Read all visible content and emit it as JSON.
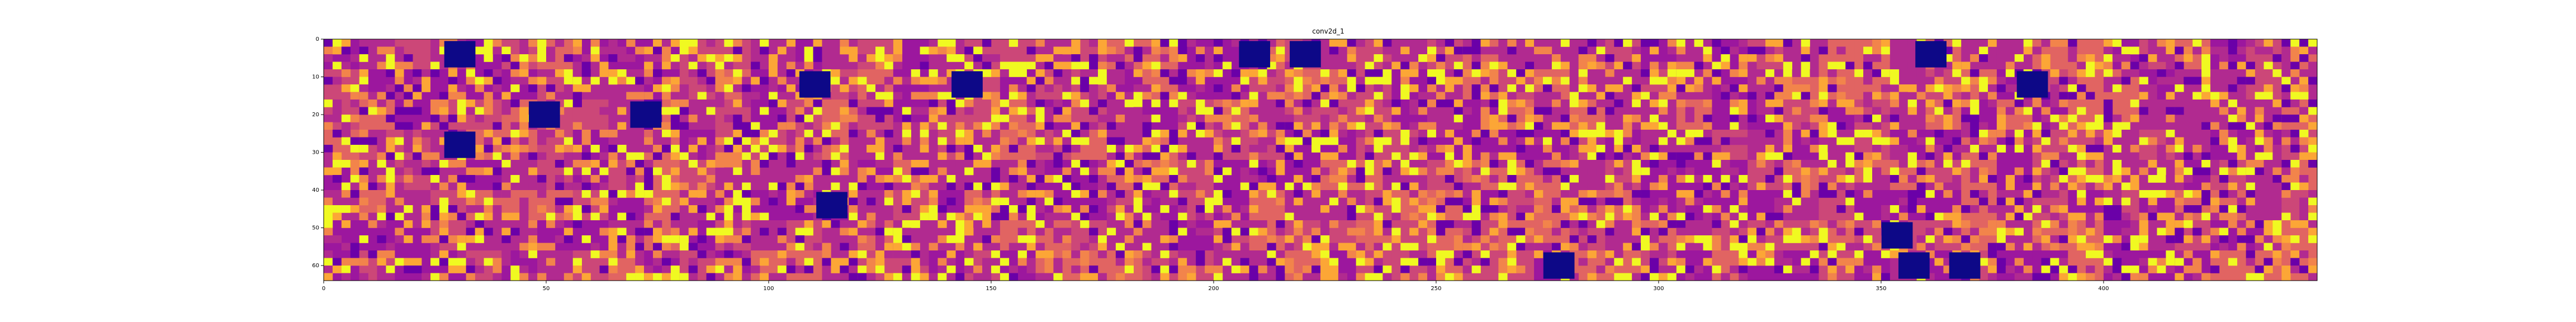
{
  "chart_data": {
    "type": "heatmap",
    "title": "conv2d_1",
    "xlabel": "",
    "ylabel": "",
    "xlim": [
      0,
      448
    ],
    "ylim": [
      64,
      0
    ],
    "x_ticks": [
      0,
      50,
      100,
      150,
      200,
      250,
      300,
      350,
      400
    ],
    "y_ticks": [
      0,
      10,
      20,
      30,
      40,
      50,
      60
    ],
    "colormap": "plasma",
    "grid": false,
    "mosaic": {
      "tile_size": 8,
      "tiles_across": 56,
      "tiles_down": 8,
      "dead_filter_tiles": [
        {
          "col": 7,
          "row": 0
        },
        {
          "col": 54,
          "row": 0
        },
        {
          "col": 57,
          "row": 0
        },
        {
          "col": 94,
          "row": 0
        },
        {
          "col": 37,
          "row": 1
        },
        {
          "col": 100,
          "row": 1
        },
        {
          "col": 12,
          "row": 2
        },
        {
          "col": 18,
          "row": 2
        },
        {
          "col": 28,
          "row": 1
        },
        {
          "col": 7,
          "row": 3
        },
        {
          "col": 29,
          "row": 5
        },
        {
          "col": 72,
          "row": 7
        },
        {
          "col": 92,
          "row": 6
        },
        {
          "col": 93,
          "row": 7
        },
        {
          "col": 96,
          "row": 7
        }
      ]
    }
  },
  "colors": {
    "dead": "#0d0887",
    "low": "#6a00a8",
    "mid_low": "#9c179e",
    "mid": "#b12a90",
    "mid_high": "#cc4778",
    "high": "#e16462",
    "higher": "#f2844b",
    "peak": "#fca636",
    "max": "#f0f921"
  }
}
